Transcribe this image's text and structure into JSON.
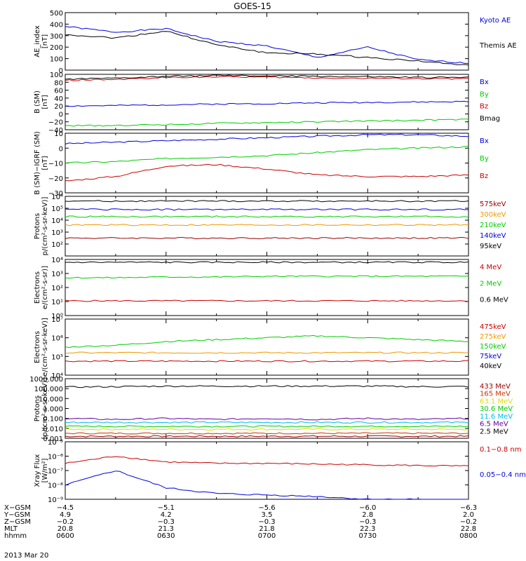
{
  "title": "GOES-15",
  "date_label": "2013 Mar 20",
  "colors": {
    "black": "#000000",
    "blue": "#0000dd",
    "green": "#00cc00",
    "red": "#cc0000",
    "darkred": "#990000",
    "orange": "#ee9900",
    "yellow": "#dddd00",
    "cyan": "#00bbee",
    "purple": "#660099"
  },
  "chart_data": [
    {
      "type": "line",
      "id": "ae",
      "ylabel": [
        "AE_index",
        "[nT]"
      ],
      "scale": "linear",
      "ylim": [
        0,
        500
      ],
      "ticks": [
        0,
        100,
        200,
        300,
        400,
        500
      ],
      "tick_labels": [
        "0",
        "100",
        "200",
        "300",
        "400",
        "500"
      ],
      "x": [
        "0600",
        "0615",
        "0630",
        "0645",
        "0700",
        "0715",
        "0730",
        "0745",
        "0800"
      ],
      "series": [
        {
          "name": "Kyoto AE",
          "color": "#0000dd",
          "values": [
            380,
            330,
            360,
            250,
            210,
            110,
            200,
            90,
            60
          ]
        },
        {
          "name": "Themis AE",
          "color": "#000000",
          "values": [
            310,
            280,
            340,
            220,
            150,
            140,
            110,
            80,
            40
          ]
        }
      ]
    },
    {
      "type": "line",
      "id": "bsm",
      "ylabel": [
        "B (SM)",
        "[nT]"
      ],
      "scale": "linear",
      "ylim": [
        -40,
        100
      ],
      "ticks": [
        -40,
        -20,
        0,
        20,
        40,
        60,
        80,
        100
      ],
      "tick_labels": [
        "−40",
        "−20",
        "0",
        "20",
        "40",
        "60",
        "80",
        "100"
      ],
      "x": [
        "0600",
        "0615",
        "0630",
        "0645",
        "0700",
        "0715",
        "0730",
        "0745",
        "0800"
      ],
      "series": [
        {
          "name": "Bx",
          "color": "#0000dd",
          "values": [
            20,
            21,
            23,
            25,
            26,
            28,
            29,
            30,
            31
          ]
        },
        {
          "name": "By",
          "color": "#00cc00",
          "values": [
            -30,
            -29,
            -27,
            -24,
            -22,
            -20,
            -18,
            -16,
            -14
          ]
        },
        {
          "name": "Bz",
          "color": "#cc0000",
          "values": [
            85,
            87,
            92,
            94,
            93,
            91,
            90,
            89,
            89
          ]
        },
        {
          "name": "Bmag",
          "color": "#000000",
          "values": [
            88,
            90,
            95,
            97,
            96,
            95,
            94,
            92,
            92
          ]
        }
      ]
    },
    {
      "type": "line",
      "id": "bigrf",
      "ylabel": [
        "B (SM)−IGRF (SM)",
        "[nT]"
      ],
      "scale": "linear",
      "ylim": [
        -30,
        10
      ],
      "ticks": [
        -30,
        -20,
        -10,
        0,
        10
      ],
      "tick_labels": [
        "−30",
        "−20",
        "−10",
        "0",
        "10"
      ],
      "x": [
        "0600",
        "0615",
        "0630",
        "0645",
        "0700",
        "0715",
        "0730",
        "0745",
        "0800"
      ],
      "series": [
        {
          "name": "Bx",
          "color": "#0000dd",
          "values": [
            3,
            4,
            5,
            6,
            7,
            8,
            9,
            9,
            8
          ]
        },
        {
          "name": "By",
          "color": "#00cc00",
          "values": [
            -10,
            -9,
            -7,
            -6,
            -5,
            -3,
            -1,
            0,
            1
          ]
        },
        {
          "name": "Bz",
          "color": "#cc0000",
          "values": [
            -22,
            -19,
            -12,
            -11,
            -14,
            -18,
            -19,
            -19,
            -18
          ]
        }
      ]
    },
    {
      "type": "line",
      "id": "protons1",
      "ylabel": [
        "Protons",
        "p/(cm²-s-sr-keV)]"
      ],
      "scale": "log",
      "ylim": [
        1,
        6
      ],
      "ticks": [
        2,
        3,
        4,
        5,
        6
      ],
      "tick_labels": [
        "10²",
        "10³",
        "10⁴",
        "10⁵",
        "10⁶"
      ],
      "x": [
        "0600",
        "0615",
        "0630",
        "0645",
        "0700",
        "0715",
        "0730",
        "0745",
        "0800"
      ],
      "series": [
        {
          "name": "575keV",
          "color": "#990000",
          "values": [
            2.5,
            2.5,
            2.5,
            2.5,
            2.5,
            2.5,
            2.5,
            2.5,
            2.5
          ]
        },
        {
          "name": "300keV",
          "color": "#ee9900",
          "values": [
            3.6,
            3.6,
            3.6,
            3.6,
            3.6,
            3.6,
            3.6,
            3.6,
            3.6
          ]
        },
        {
          "name": "210keV",
          "color": "#00cc00",
          "values": [
            4.3,
            4.3,
            4.3,
            4.3,
            4.3,
            4.3,
            4.3,
            4.3,
            4.3
          ]
        },
        {
          "name": "140keV",
          "color": "#0000dd",
          "values": [
            4.9,
            4.9,
            4.9,
            4.9,
            4.9,
            4.9,
            4.9,
            4.9,
            4.9
          ]
        },
        {
          "name": "95keV",
          "color": "#000000",
          "values": [
            5.6,
            5.6,
            5.6,
            5.6,
            5.6,
            5.6,
            5.6,
            5.6,
            5.6
          ]
        }
      ]
    },
    {
      "type": "line",
      "id": "electrons1",
      "ylabel": [
        "Electrons",
        "e/(cm²-s-sr)]"
      ],
      "scale": "log",
      "ylim": [
        0,
        4
      ],
      "ticks": [
        0,
        1,
        2,
        3,
        4
      ],
      "tick_labels": [
        "10⁰",
        "10¹",
        "10²",
        "10³",
        "10⁴"
      ],
      "x": [
        "0600",
        "0615",
        "0630",
        "0645",
        "0700",
        "0715",
        "0730",
        "0745",
        "0800"
      ],
      "series": [
        {
          "name": "4 MeV",
          "color": "#cc0000",
          "values": [
            1.05,
            1.05,
            1.05,
            1.05,
            1.05,
            1.05,
            1.05,
            1.05,
            1.05
          ]
        },
        {
          "name": "2 MeV",
          "color": "#00cc00",
          "values": [
            2.7,
            2.7,
            2.75,
            2.75,
            2.8,
            2.8,
            2.8,
            2.8,
            2.8
          ]
        },
        {
          "name": "0.6 MeV",
          "color": "#000000",
          "values": [
            3.8,
            3.8,
            3.8,
            3.8,
            3.8,
            3.8,
            3.8,
            3.8,
            3.8
          ]
        }
      ]
    },
    {
      "type": "line",
      "id": "electrons2",
      "ylabel": [
        "Electrons",
        "e/(cm²-s-sr-keV)]"
      ],
      "scale": "log",
      "ylim": [
        4,
        7
      ],
      "ticks": [
        4,
        5,
        6,
        7
      ],
      "tick_labels": [
        "10⁴",
        "10⁵",
        "10⁶",
        "10⁷"
      ],
      "x": [
        "0600",
        "0615",
        "0630",
        "0645",
        "0700",
        "0715",
        "0730",
        "0745",
        "0800"
      ],
      "series": [
        {
          "name": "475keV",
          "color": "#cc0000",
          "values": [
            4.75,
            4.75,
            4.75,
            4.75,
            4.75,
            4.75,
            4.75,
            4.75,
            4.75
          ]
        },
        {
          "name": "275keV",
          "color": "#ee9900",
          "values": [
            5.2,
            5.2,
            5.2,
            5.2,
            5.2,
            5.2,
            5.2,
            5.2,
            5.2
          ]
        },
        {
          "name": "150keV",
          "color": "#00cc00",
          "values": [
            5.5,
            5.6,
            5.8,
            5.9,
            6.0,
            6.1,
            6.0,
            5.9,
            5.8
          ]
        },
        {
          "name": "75keV",
          "color": "#0000dd",
          "values": [
            7.2,
            7.2,
            7.2,
            7.2,
            7.2,
            7.2,
            7.2,
            7.2,
            7.2
          ]
        },
        {
          "name": "40keV",
          "color": "#000000",
          "values": [
            7.2,
            7.2,
            7.2,
            7.2,
            7.2,
            7.2,
            7.2,
            7.2,
            7.2
          ]
        }
      ]
    },
    {
      "type": "line",
      "id": "protons2",
      "ylabel": [
        "Protons",
        "[p/(cm²-s-sr-keV)]"
      ],
      "scale": "log",
      "ylim": [
        -3,
        3
      ],
      "ticks": [
        -3,
        -2,
        -1,
        0,
        1,
        2,
        3
      ],
      "tick_labels": [
        "0.001",
        "0.010",
        "0.100",
        "1.000",
        "10.000",
        "100.000",
        "1000.000"
      ],
      "x": [
        "0600",
        "0615",
        "0630",
        "0645",
        "0700",
        "0715",
        "0730",
        "0745",
        "0800"
      ],
      "series": [
        {
          "name": "433 MeV",
          "color": "#990000",
          "values": [
            -2.8,
            -2.8,
            -2.8,
            -2.8,
            -2.8,
            -2.8,
            -2.8,
            -2.8,
            -2.8
          ]
        },
        {
          "name": "165 MeV",
          "color": "#cc3300",
          "values": [
            -2.5,
            -2.5,
            -2.5,
            -2.5,
            -2.5,
            -2.5,
            -2.5,
            -2.5,
            -2.5
          ]
        },
        {
          "name": "63.1 MeV",
          "color": "#dddd00",
          "values": [
            -2.1,
            -2.1,
            -2.1,
            -2.1,
            -2.1,
            -2.1,
            -2.1,
            -2.1,
            -2.1
          ]
        },
        {
          "name": "30.6 MeV",
          "color": "#00cc00",
          "values": [
            -1.8,
            -1.8,
            -1.8,
            -1.8,
            -1.8,
            -1.8,
            -1.8,
            -1.8,
            -1.8
          ]
        },
        {
          "name": "11.6 MeV",
          "color": "#00bbee",
          "values": [
            -1.4,
            -1.4,
            -1.4,
            -1.4,
            -1.4,
            -1.4,
            -1.4,
            -1.4,
            -1.4
          ]
        },
        {
          "name": "6.5 MeV",
          "color": "#660099",
          "values": [
            -1.0,
            -1.1,
            -1.0,
            -1.1,
            -1.0,
            -1.1,
            -1.0,
            -1.1,
            -1.0
          ]
        },
        {
          "name": "2.5 MeV",
          "color": "#000000",
          "values": [
            2.15,
            2.2,
            2.25,
            2.25,
            2.25,
            2.25,
            2.25,
            2.2,
            2.2
          ]
        }
      ]
    },
    {
      "type": "line",
      "id": "xray",
      "ylabel": [
        "Xray Flux",
        "[W/m²]"
      ],
      "scale": "log",
      "ylim": [
        -9,
        -5
      ],
      "ticks": [
        -9,
        -8,
        -7,
        -6,
        -5
      ],
      "tick_labels": [
        "10⁻⁹",
        "10⁻⁸",
        "10⁻⁷",
        "10⁻⁶",
        "10⁻⁵"
      ],
      "x": [
        "0600",
        "0615",
        "0630",
        "0645",
        "0700",
        "0715",
        "0730",
        "0745",
        "0800"
      ],
      "series": [
        {
          "name": "0.1−0.8 nm",
          "color": "#cc0000",
          "values": [
            -6.5,
            -6.0,
            -6.4,
            -6.5,
            -6.5,
            -6.55,
            -6.6,
            -6.65,
            -6.7
          ]
        },
        {
          "name": "0.05−0.4 nm",
          "color": "#0000dd",
          "values": [
            -8.0,
            -7.0,
            -8.2,
            -8.6,
            -8.7,
            -8.8,
            -9.0,
            -9.0,
            -9.1
          ]
        }
      ]
    }
  ],
  "xaxis": {
    "row_labels": [
      "X−GSM",
      "Y−GSM",
      "Z−GSM",
      "MLT",
      "hhmm"
    ],
    "columns": [
      [
        "−4.5",
        "4.9",
        "−0.2",
        "20.8",
        "0600"
      ],
      [
        "−5.1",
        "4.2",
        "−0.3",
        "21.3",
        "0630"
      ],
      [
        "−5.6",
        "3.5",
        "−0.3",
        "21.8",
        "0700"
      ],
      [
        "−6.0",
        "2.8",
        "−0.3",
        "22.3",
        "0730"
      ],
      [
        "−6.3",
        "2.0",
        "−0.2",
        "22.8",
        "0800"
      ]
    ]
  }
}
